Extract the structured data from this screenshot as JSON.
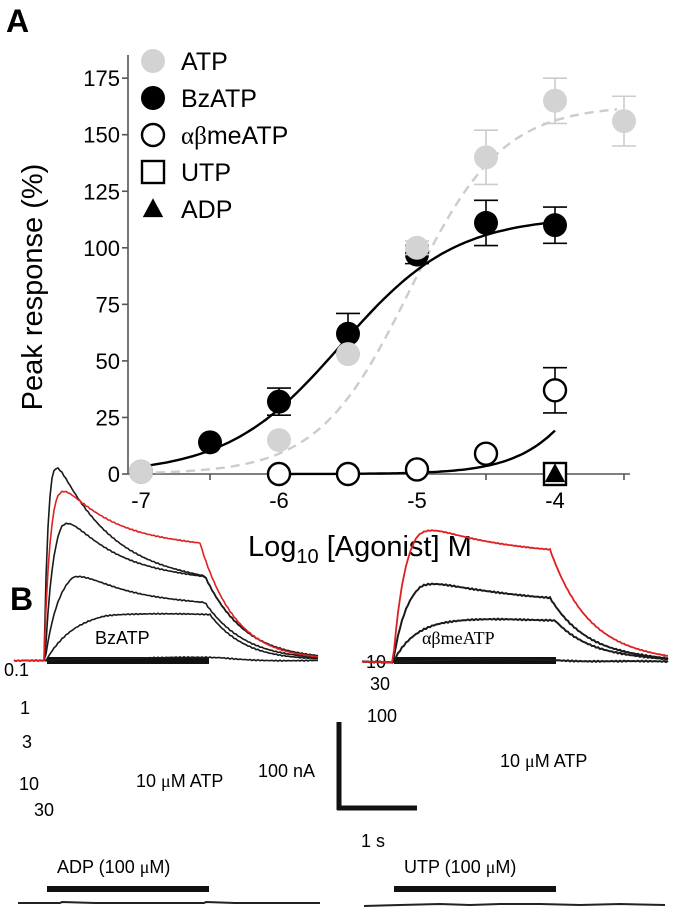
{
  "panel_a_label": "A",
  "panel_b_label": "B",
  "chart_data": [
    {
      "type": "scatter",
      "title": "",
      "xlabel_main": "Log",
      "xlabel_sub": "10",
      "xlabel_rest": " [Agonist] M",
      "ylabel": "Peak response (%)",
      "xlim": [
        -7.1,
        -3.4
      ],
      "ylim": [
        0,
        185
      ],
      "xticks": [
        -7,
        -6.5,
        -6,
        -5.5,
        -5,
        -4.5,
        -4,
        -3.5
      ],
      "xtick_labels": [
        {
          "x": -7,
          "label": "-7"
        },
        {
          "x": -6,
          "label": "-6"
        },
        {
          "x": -5,
          "label": "-5"
        },
        {
          "x": -4,
          "label": "-4"
        }
      ],
      "yticks": [
        0,
        25,
        50,
        75,
        100,
        125,
        150,
        175
      ],
      "ytick_labels": [
        "0",
        "25",
        "50",
        "75",
        "100",
        "125",
        "150",
        "175"
      ],
      "grid": false,
      "legend_position": "top-left",
      "series": [
        {
          "name": "ATP",
          "marker": "circle-filled",
          "color": "#d3d3d3",
          "fit": {
            "style": "dashed",
            "bottom": 0,
            "top": 163,
            "logEC50": -5.05,
            "hill": 1.3
          },
          "points": [
            {
              "x": -7,
              "y": 1,
              "err": 0
            },
            {
              "x": -6,
              "y": 15,
              "err": 0
            },
            {
              "x": -5.5,
              "y": 53,
              "err": 0
            },
            {
              "x": -5,
              "y": 100,
              "err": 3
            },
            {
              "x": -4.5,
              "y": 140,
              "err": 12
            },
            {
              "x": -4,
              "y": 165,
              "err": 10
            },
            {
              "x": -3.5,
              "y": 156,
              "err": 11
            }
          ]
        },
        {
          "name": "BzATP",
          "marker": "circle-filled",
          "color": "#000000",
          "fit": {
            "style": "solid",
            "bottom": 0,
            "top": 114,
            "logEC50": -5.55,
            "hill": 1.05
          },
          "points": [
            {
              "x": -7,
              "y": 1,
              "err": 0
            },
            {
              "x": -6.5,
              "y": 14,
              "err": 0
            },
            {
              "x": -6,
              "y": 32,
              "err": 6
            },
            {
              "x": -5.5,
              "y": 62,
              "err": 9
            },
            {
              "x": -5,
              "y": 97,
              "err": 4
            },
            {
              "x": -4.5,
              "y": 111,
              "err": 10
            },
            {
              "x": -4,
              "y": 110,
              "err": 8
            }
          ]
        },
        {
          "name": "αβmeATP",
          "marker": "circle-open",
          "color": "#000000",
          "fit": {
            "style": "solid",
            "bottom": 0,
            "top": 120,
            "logEC50": -3.55,
            "hill": 1.6
          },
          "points": [
            {
              "x": -6,
              "y": 0,
              "err": 0
            },
            {
              "x": -5.5,
              "y": 0,
              "err": 0
            },
            {
              "x": -5,
              "y": 2,
              "err": 0
            },
            {
              "x": -4.5,
              "y": 9,
              "err": 0
            },
            {
              "x": -4,
              "y": 37,
              "err": 10
            }
          ]
        },
        {
          "name": "UTP",
          "marker": "square-open",
          "color": "#000000",
          "points": [
            {
              "x": -4,
              "y": 0,
              "err": 0
            }
          ]
        },
        {
          "name": "ADP",
          "marker": "triangle-filled",
          "color": "#000000",
          "points": [
            {
              "x": -4,
              "y": 0,
              "err": 0
            }
          ]
        }
      ]
    },
    {
      "type": "line",
      "title": "BzATP current traces",
      "bar_label": "BzATP",
      "concentration_labels": [
        "0.1",
        "1",
        "3",
        "10",
        "30"
      ],
      "reference_label_num": "10 ",
      "reference_label_mu": "μ",
      "reference_label_rest": "M ATP",
      "reference_color": "#e02020",
      "trace_color": "#1a1a1a",
      "units_y": "nA",
      "units_x": "s",
      "peak_currents_nA": {
        "0.1": -4,
        "1": -60,
        "3": -110,
        "10": -175,
        "30": -240,
        "ATP 10 μM": -210
      }
    },
    {
      "type": "line",
      "title": "αβmeATP current traces",
      "bar_label": "αβmeATP",
      "concentration_labels": [
        "10",
        "30",
        "100"
      ],
      "reference_label_num": "10 ",
      "reference_label_mu": "μ",
      "reference_label_rest": "M ATP",
      "reference_color": "#e02020",
      "trace_color": "#1a1a1a",
      "peak_currents_nA": {
        "10": -3,
        "30": -50,
        "100": -100,
        "ATP 10 μM": -165
      }
    },
    {
      "type": "line",
      "title": "ADP trace",
      "bar_label_pre": "ADP (100 ",
      "bar_label_mu": "μ",
      "bar_label_post": "M)",
      "peak_currents_nA": {
        "100": 0
      }
    },
    {
      "type": "line",
      "title": "UTP trace",
      "bar_label_pre": "UTP (100 ",
      "bar_label_mu": "μ",
      "bar_label_post": "M)",
      "peak_currents_nA": {
        "100": 0
      }
    }
  ],
  "scale_bar": {
    "current_label": "100 nA",
    "time_label": "1 s",
    "current_value_nA": 100,
    "time_value_s": 1
  }
}
